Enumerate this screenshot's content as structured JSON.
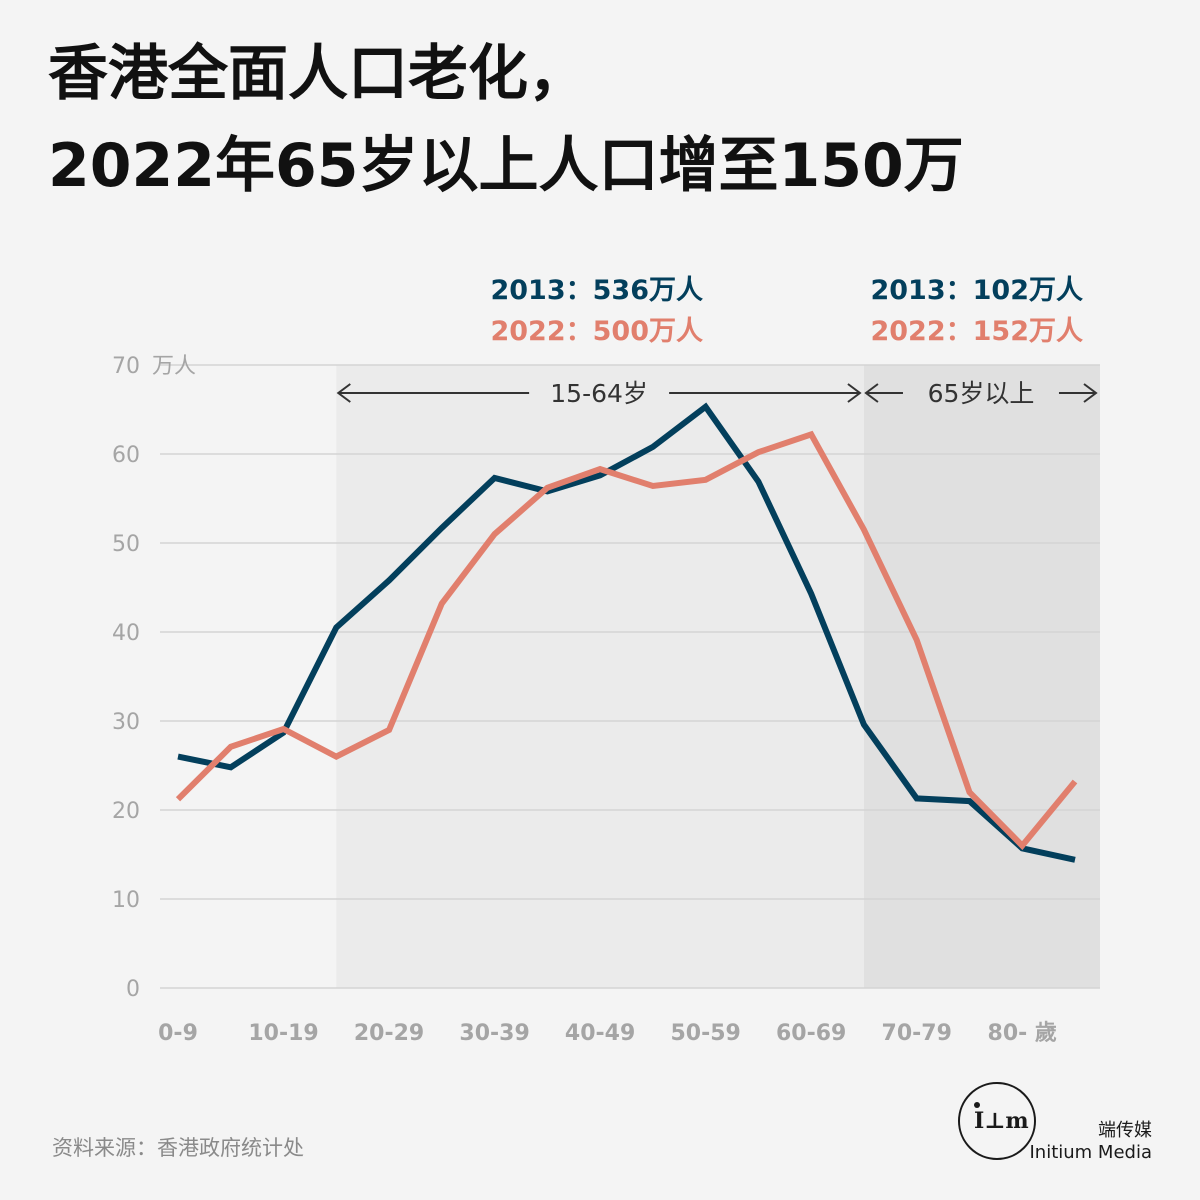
{
  "title": {
    "line1": "香港全面人口老化，",
    "line2": "2022年65岁以上人口增至150万"
  },
  "source": "资料来源：香港政府统计处",
  "brand": {
    "name_cn": "端传媒",
    "name_en": "Initium Media"
  },
  "colors": {
    "series_2013": "#033f5c",
    "series_2022": "#e17f6d",
    "band_15_64": "#ebebeb",
    "band_65_plus": "#e0e0e0"
  },
  "chart_data": {
    "type": "line",
    "y_unit_label": "万人",
    "ylim": [
      0,
      70
    ],
    "yticks": [
      0,
      10,
      20,
      30,
      40,
      50,
      60,
      70
    ],
    "xlim": [
      0,
      85
    ],
    "xticks": [
      {
        "x": 0,
        "label": "0-9"
      },
      {
        "x": 10,
        "label": "10-19"
      },
      {
        "x": 20,
        "label": "20-29"
      },
      {
        "x": 30,
        "label": "30-39"
      },
      {
        "x": 40,
        "label": "40-49"
      },
      {
        "x": 50,
        "label": "50-59"
      },
      {
        "x": 60,
        "label": "60-69"
      },
      {
        "x": 70,
        "label": "70-79"
      },
      {
        "x": 80,
        "label": "80- 歲"
      }
    ],
    "x": [
      0,
      5,
      10,
      15,
      20,
      25,
      30,
      35,
      40,
      45,
      50,
      55,
      60,
      65,
      70,
      75,
      80,
      85
    ],
    "series": [
      {
        "name": "2013",
        "values": [
          26.0,
          24.8,
          28.7,
          40.5,
          45.8,
          51.7,
          57.3,
          55.8,
          57.6,
          60.8,
          65.3,
          56.9,
          44.3,
          29.6,
          21.3,
          21.0,
          15.7,
          14.4
        ]
      },
      {
        "name": "2022",
        "values": [
          21.2,
          27.1,
          29.1,
          26.0,
          29.0,
          43.2,
          51.0,
          56.2,
          58.3,
          56.4,
          57.1,
          60.2,
          62.2,
          51.5,
          39.1,
          22.0,
          16.0,
          23.2
        ]
      }
    ],
    "bands": [
      {
        "label": "15-64岁",
        "from": 15,
        "to": 65
      },
      {
        "label": "65岁以上",
        "from": 65,
        "to": 88.2
      }
    ],
    "annotations": [
      {
        "band": "15-64岁",
        "lines": [
          {
            "series": "2013",
            "text": "2013：536万人"
          },
          {
            "series": "2022",
            "text": "2022：500万人"
          }
        ]
      },
      {
        "band": "65岁以上",
        "lines": [
          {
            "series": "2013",
            "text": "2013：102万人"
          },
          {
            "series": "2022",
            "text": "2022：152万人"
          }
        ]
      }
    ]
  }
}
